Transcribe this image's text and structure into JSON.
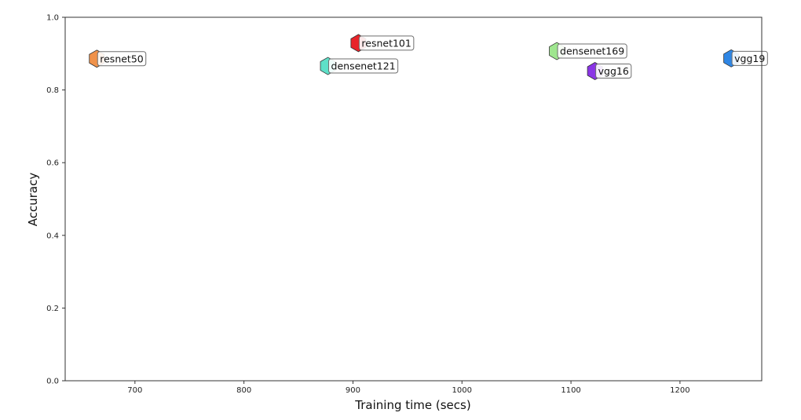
{
  "chart_data": {
    "type": "scatter",
    "title": "",
    "xlabel": "Training time (secs)",
    "ylabel": "Accuracy",
    "xlim": [
      636,
      1275
    ],
    "ylim": [
      0.0,
      1.0
    ],
    "xticks": [
      700,
      800,
      900,
      1000,
      1100,
      1200
    ],
    "xtick_labels": [
      "700",
      "800",
      "900",
      "1000",
      "1100",
      "1200"
    ],
    "yticks": [
      0.0,
      0.2,
      0.4,
      0.6,
      0.8,
      1.0
    ],
    "ytick_labels": [
      "0.0",
      "0.2",
      "0.4",
      "0.6",
      "0.8",
      "1.0"
    ],
    "grid": false,
    "marker": "hexagon",
    "points": [
      {
        "label": "resnet50",
        "x": 665,
        "y": 0.886,
        "color": "#f0924a"
      },
      {
        "label": "densenet121",
        "x": 877,
        "y": 0.866,
        "color": "#5ee0c8"
      },
      {
        "label": "resnet101",
        "x": 905,
        "y": 0.929,
        "color": "#e8242a"
      },
      {
        "label": "densenet169",
        "x": 1087,
        "y": 0.907,
        "color": "#9fe68f"
      },
      {
        "label": "vgg16",
        "x": 1122,
        "y": 0.852,
        "color": "#8a34e6"
      },
      {
        "label": "vgg19",
        "x": 1247,
        "y": 0.887,
        "color": "#2f86e4"
      }
    ]
  }
}
